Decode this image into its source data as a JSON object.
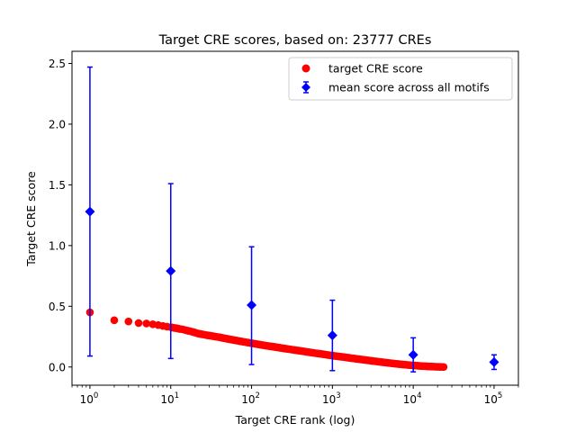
{
  "chart_data": {
    "type": "scatter",
    "title": "Target CRE scores, based on: 23777 CREs",
    "xlabel": "Target CRE rank (log)",
    "ylabel": "Target CRE score",
    "xscale": "log",
    "xlim": [
      0.6,
      200000
    ],
    "ylim": [
      -0.15,
      2.6
    ],
    "yticks": [
      "0.0",
      "0.5",
      "1.0",
      "1.5",
      "2.0",
      "2.5"
    ],
    "xticks": [
      {
        "base": "10",
        "exp": "0"
      },
      {
        "base": "10",
        "exp": "1"
      },
      {
        "base": "10",
        "exp": "2"
      },
      {
        "base": "10",
        "exp": "3"
      },
      {
        "base": "10",
        "exp": "4"
      },
      {
        "base": "10",
        "exp": "5"
      }
    ],
    "legend_position": "top-right",
    "grid": false,
    "series": [
      {
        "name": "target CRE score",
        "marker": "circle",
        "color": "#ff0000",
        "points": [
          [
            1,
            0.45
          ],
          [
            2,
            0.385
          ],
          [
            3,
            0.375
          ],
          [
            4,
            0.362
          ],
          [
            5,
            0.358
          ],
          [
            6,
            0.352
          ],
          [
            7,
            0.345
          ],
          [
            8,
            0.338
          ],
          [
            9,
            0.332
          ],
          [
            10,
            0.328
          ],
          [
            11,
            0.322
          ],
          [
            12,
            0.318
          ],
          [
            13,
            0.313
          ],
          [
            14,
            0.31
          ],
          [
            15,
            0.305
          ],
          [
            16,
            0.3
          ],
          [
            18,
            0.292
          ],
          [
            20,
            0.283
          ],
          [
            22,
            0.275
          ],
          [
            25,
            0.268
          ],
          [
            28,
            0.262
          ],
          [
            32,
            0.256
          ],
          [
            36,
            0.25
          ],
          [
            40,
            0.245
          ],
          [
            45,
            0.238
          ],
          [
            50,
            0.232
          ],
          [
            60,
            0.222
          ],
          [
            70,
            0.214
          ],
          [
            80,
            0.207
          ],
          [
            100,
            0.196
          ],
          [
            120,
            0.187
          ],
          [
            150,
            0.176
          ],
          [
            180,
            0.168
          ],
          [
            220,
            0.159
          ],
          [
            270,
            0.15
          ],
          [
            330,
            0.141
          ],
          [
            400,
            0.133
          ],
          [
            500,
            0.123
          ],
          [
            600,
            0.115
          ],
          [
            750,
            0.106
          ],
          [
            900,
            0.098
          ],
          [
            1100,
            0.09
          ],
          [
            1400,
            0.081
          ],
          [
            1700,
            0.073
          ],
          [
            2100,
            0.065
          ],
          [
            2600,
            0.057
          ],
          [
            3200,
            0.049
          ],
          [
            4000,
            0.041
          ],
          [
            5000,
            0.033
          ],
          [
            6200,
            0.026
          ],
          [
            7600,
            0.02
          ],
          [
            9500,
            0.014
          ],
          [
            12000,
            0.009
          ],
          [
            15000,
            0.005
          ],
          [
            19000,
            0.002
          ],
          [
            23777,
            0.0
          ]
        ]
      },
      {
        "name": "mean score across all motifs",
        "marker": "diamond",
        "color": "#0000ff",
        "points": [
          {
            "x": 1,
            "y": 1.28,
            "ylow": 0.09,
            "yhigh": 2.47
          },
          {
            "x": 10,
            "y": 0.79,
            "ylow": 0.07,
            "yhigh": 1.51
          },
          {
            "x": 100,
            "y": 0.51,
            "ylow": 0.02,
            "yhigh": 0.99
          },
          {
            "x": 1000,
            "y": 0.26,
            "ylow": -0.03,
            "yhigh": 0.55
          },
          {
            "x": 10000,
            "y": 0.1,
            "ylow": -0.04,
            "yhigh": 0.24
          },
          {
            "x": 100000,
            "y": 0.04,
            "ylow": -0.02,
            "yhigh": 0.1
          }
        ]
      }
    ]
  }
}
